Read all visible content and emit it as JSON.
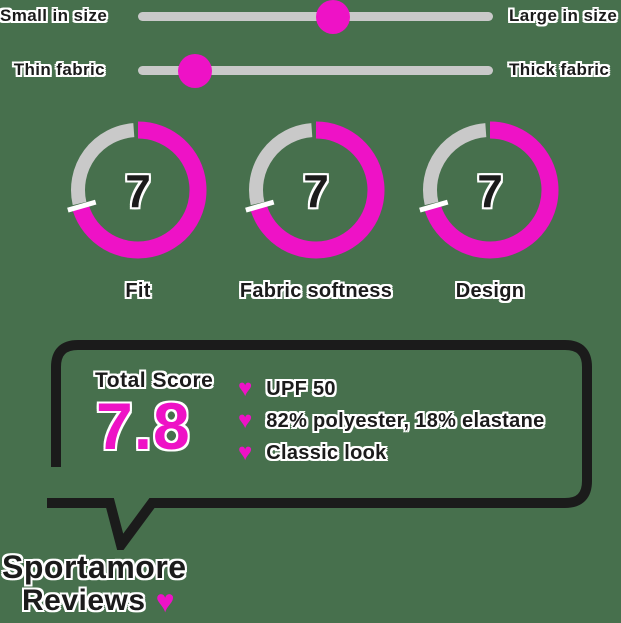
{
  "colors": {
    "background": "#47704d",
    "accent": "#ee12c6",
    "track_gray": "#c9c9c9",
    "ink": "#1b1b1b",
    "outline_white": "#ffffff"
  },
  "sliders": [
    {
      "left_label": "Small in size",
      "right_label": "Large in size",
      "position_pct": 55
    },
    {
      "left_label": "Thin fabric",
      "right_label": "Thick fabric",
      "position_pct": 16
    }
  ],
  "gauges": [
    {
      "label": "Fit",
      "score": 7,
      "max": 10
    },
    {
      "label": "Fabric softness",
      "score": 7,
      "max": 10
    },
    {
      "label": "Design",
      "score": 7,
      "max": 10
    }
  ],
  "summary": {
    "title": "Total Score",
    "score": "7.8",
    "bullets": [
      "UPF 50",
      "82% polyester, 18% elastane",
      "Classic look"
    ],
    "heart": "♥"
  },
  "brand": {
    "line1": "Sportamore",
    "line2": "Reviews",
    "heart": "♥"
  },
  "chart_data": [
    {
      "type": "pie",
      "variant": "donut-gauge",
      "title": "Fit",
      "values": [
        7
      ],
      "max": 10,
      "filled_color": "#ee12c6",
      "rest_color": "#c9c9c9",
      "center_label": "7"
    },
    {
      "type": "pie",
      "variant": "donut-gauge",
      "title": "Fabric softness",
      "values": [
        7
      ],
      "max": 10,
      "filled_color": "#ee12c6",
      "rest_color": "#c9c9c9",
      "center_label": "7"
    },
    {
      "type": "pie",
      "variant": "donut-gauge",
      "title": "Design",
      "values": [
        7
      ],
      "max": 10,
      "filled_color": "#ee12c6",
      "rest_color": "#c9c9c9",
      "center_label": "7"
    },
    {
      "type": "slider",
      "title": "Size scale",
      "left": "Small in size",
      "right": "Large in size",
      "value_pct": 55
    },
    {
      "type": "slider",
      "title": "Fabric thickness scale",
      "left": "Thin fabric",
      "right": "Thick fabric",
      "value_pct": 16
    },
    {
      "type": "score",
      "title": "Total Score",
      "value": 7.8
    }
  ]
}
